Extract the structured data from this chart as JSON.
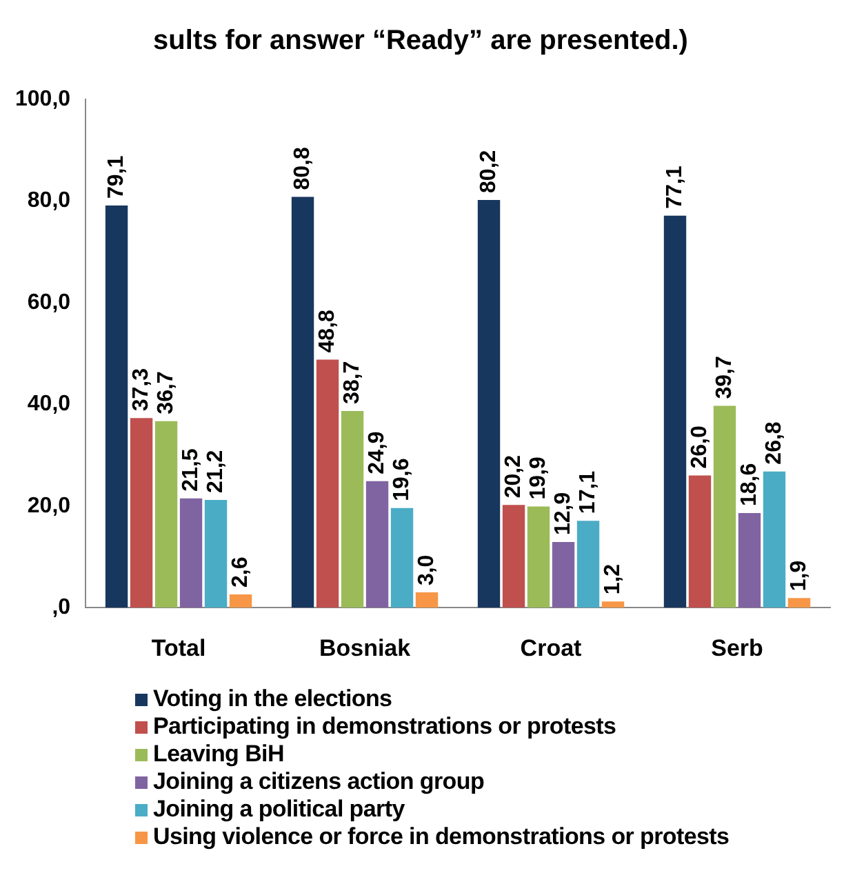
{
  "chart_data": {
    "type": "bar",
    "title": "sults for answer “Ready” are presented.)",
    "categories": [
      "Total",
      "Bosniak",
      "Croat",
      "Serb"
    ],
    "series": [
      {
        "name": "Voting in the elections",
        "color": "#17375e",
        "values": [
          79.1,
          80.8,
          80.2,
          77.1
        ],
        "value_labels": [
          "79,1",
          "80,8",
          "80,2",
          "77,1"
        ]
      },
      {
        "name": "Participating in demonstrations or protests",
        "color": "#c0504d",
        "values": [
          37.3,
          48.8,
          20.2,
          26.0
        ],
        "value_labels": [
          "37,3",
          "48,8",
          "20,2",
          "26,0"
        ]
      },
      {
        "name": "Leaving BiH",
        "color": "#9bbb59",
        "values": [
          36.7,
          38.7,
          19.9,
          39.7
        ],
        "value_labels": [
          "36,7",
          "38,7",
          "19,9",
          "39,7"
        ]
      },
      {
        "name": "Joining a citizens action group",
        "color": "#8064a2",
        "values": [
          21.5,
          24.9,
          12.9,
          18.6
        ],
        "value_labels": [
          "21,5",
          "24,9",
          "12,9",
          "18,6"
        ]
      },
      {
        "name": "Joining a political party",
        "color": "#4bacc6",
        "values": [
          21.2,
          19.6,
          17.1,
          26.8
        ],
        "value_labels": [
          "21,2",
          "19,6",
          "17,1",
          "26,8"
        ]
      },
      {
        "name": "Using violence or force in demonstrations or protests",
        "color": "#f79646",
        "values": [
          2.6,
          3.0,
          1.2,
          1.9
        ],
        "value_labels": [
          "2,6",
          "3,0",
          "1,2",
          "1,9"
        ]
      }
    ],
    "ylim": [
      0,
      100
    ],
    "yticks": [
      {
        "value": 0,
        "label": ",0"
      },
      {
        "value": 20,
        "label": "20,0"
      },
      {
        "value": 40,
        "label": "40,0"
      },
      {
        "value": 60,
        "label": "60,0"
      },
      {
        "value": 80,
        "label": "80,0"
      },
      {
        "value": 100,
        "label": "100,0"
      }
    ],
    "grid": false,
    "legend": "bottom"
  }
}
